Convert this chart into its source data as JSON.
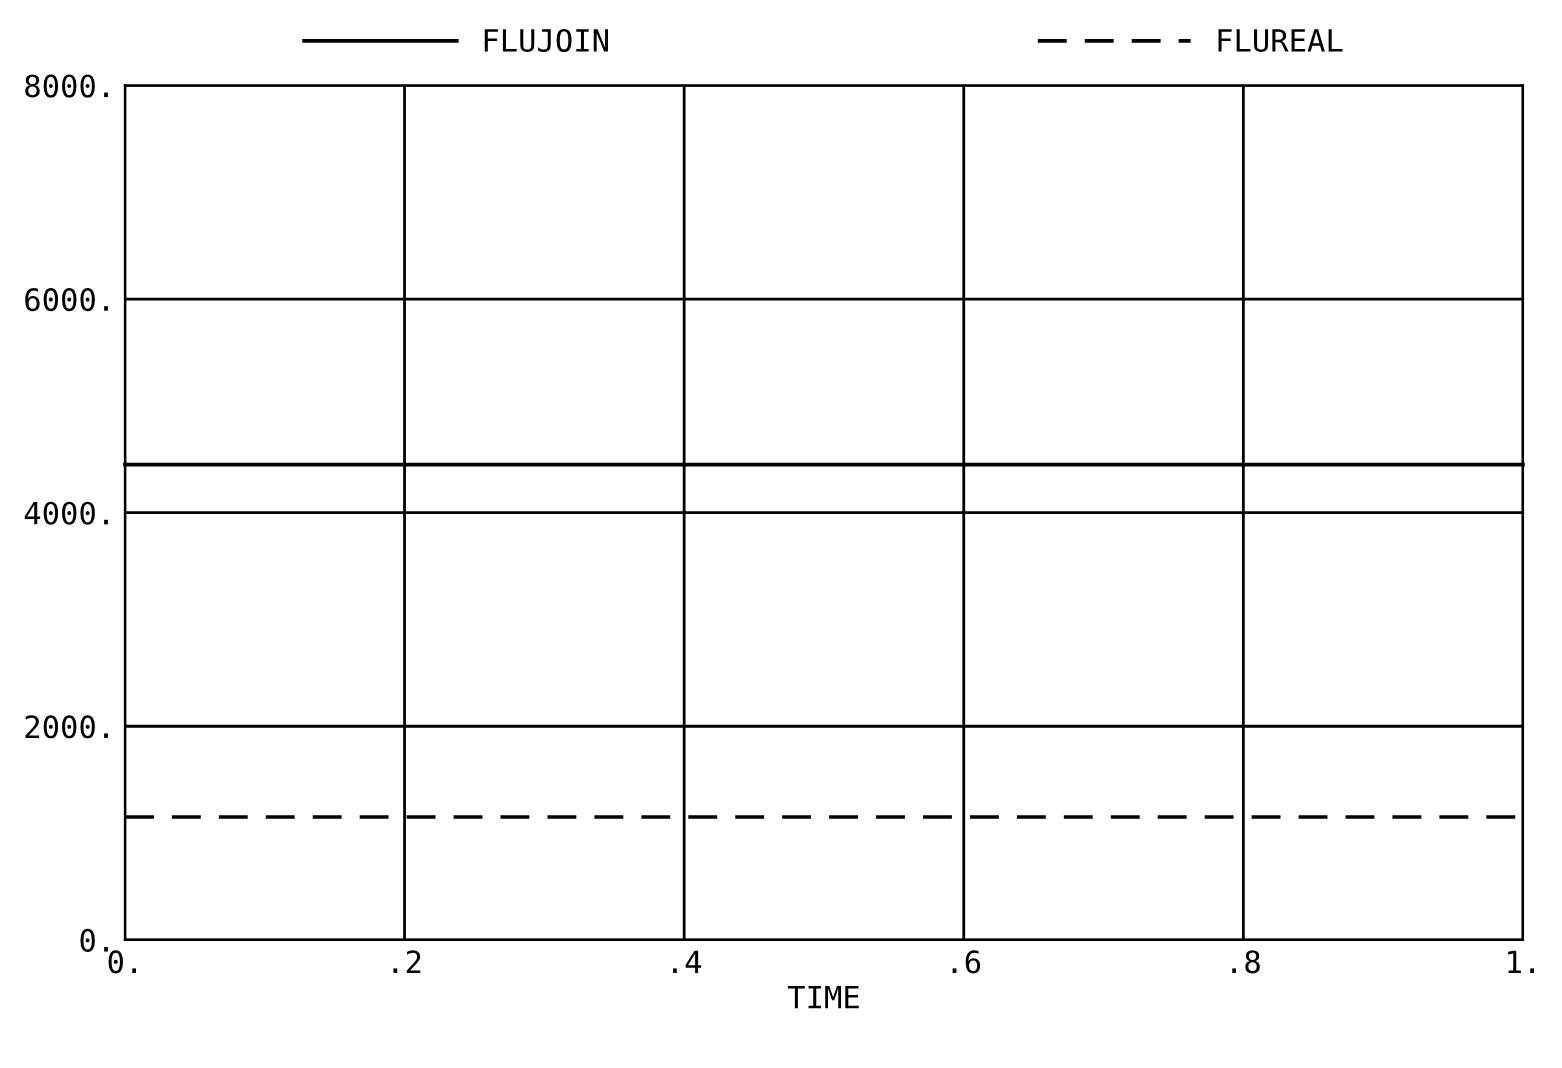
{
  "chart_data": {
    "type": "line",
    "xlabel": "TIME",
    "x": [
      0,
      1
    ],
    "series": [
      {
        "name": "FLUJOIN",
        "color": "#000000",
        "line_style": "solid",
        "values": [
          4450,
          4450
        ]
      },
      {
        "name": "FLUREAL",
        "color": "#000000",
        "line_style": "dashed",
        "values": [
          1150,
          1150
        ]
      }
    ],
    "xlim": [
      0,
      1
    ],
    "ylim": [
      0,
      8000
    ],
    "xticks": [
      {
        "value": 0,
        "label": "0."
      },
      {
        "value": 0.2,
        "label": ".2"
      },
      {
        "value": 0.4,
        "label": ".4"
      },
      {
        "value": 0.6,
        "label": ".6"
      },
      {
        "value": 0.8,
        "label": ".8"
      },
      {
        "value": 1,
        "label": "1."
      }
    ],
    "yticks": [
      {
        "value": 0,
        "label": "0."
      },
      {
        "value": 2000,
        "label": "2000."
      },
      {
        "value": 4000,
        "label": "4000."
      },
      {
        "value": 6000,
        "label": "6000."
      },
      {
        "value": 8000,
        "label": "8000."
      }
    ],
    "grid": true,
    "legend": "top",
    "marker": "none"
  }
}
